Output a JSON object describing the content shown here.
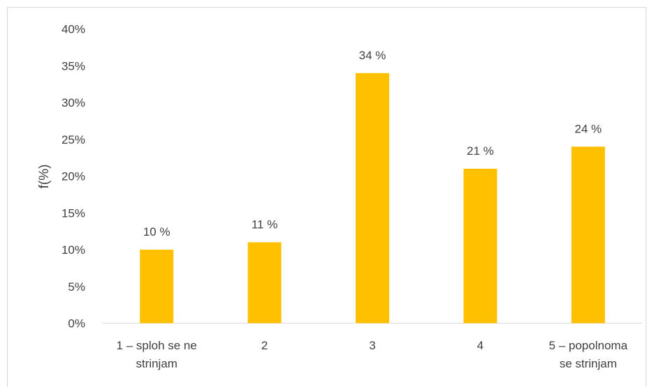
{
  "chart_data": {
    "type": "bar",
    "categories": [
      [
        "1 – sploh se ne",
        "strinjam"
      ],
      [
        "2"
      ],
      [
        "3"
      ],
      [
        "4"
      ],
      [
        "5 – popolnoma",
        "se strinjam"
      ]
    ],
    "values": [
      10,
      11,
      34,
      21,
      24
    ],
    "data_labels": [
      "10 %",
      "11 %",
      "34 %",
      "21 %",
      "24 %"
    ],
    "ylabel": "f(%)",
    "yticks": [
      "0%",
      "5%",
      "10%",
      "15%",
      "20%",
      "25%",
      "30%",
      "35%",
      "40%"
    ],
    "ylim": [
      0,
      40
    ],
    "bar_color": "#FFC000",
    "grid": false,
    "legend": "none"
  }
}
